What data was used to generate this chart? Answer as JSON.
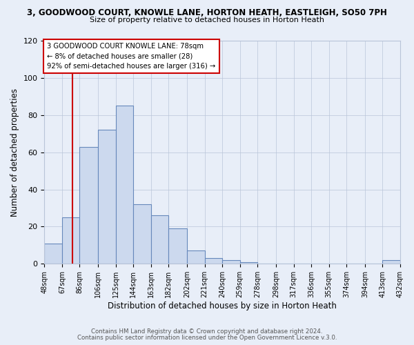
{
  "title_main": "3, GOODWOOD COURT, KNOWLE LANE, HORTON HEATH, EASTLEIGH, SO50 7PH",
  "title_sub": "Size of property relative to detached houses in Horton Heath",
  "xlabel": "Distribution of detached houses by size in Horton Heath",
  "ylabel": "Number of detached properties",
  "bin_edges": [
    48,
    67,
    86,
    106,
    125,
    144,
    163,
    182,
    202,
    221,
    240,
    259,
    278,
    298,
    317,
    336,
    355,
    374,
    394,
    413,
    432
  ],
  "bin_labels": [
    "48sqm",
    "67sqm",
    "86sqm",
    "106sqm",
    "125sqm",
    "144sqm",
    "163sqm",
    "182sqm",
    "202sqm",
    "221sqm",
    "240sqm",
    "259sqm",
    "278sqm",
    "298sqm",
    "317sqm",
    "336sqm",
    "355sqm",
    "374sqm",
    "394sqm",
    "413sqm",
    "432sqm"
  ],
  "counts": [
    11,
    25,
    63,
    72,
    85,
    32,
    26,
    19,
    7,
    3,
    2,
    1,
    0,
    0,
    0,
    0,
    0,
    0,
    0,
    2
  ],
  "bar_facecolor": "#ccd9ee",
  "bar_edgecolor": "#6688bb",
  "vline_x": 78,
  "vline_color": "#cc0000",
  "annotation_line1": "3 GOODWOOD COURT KNOWLE LANE: 78sqm",
  "annotation_line2": "← 8% of detached houses are smaller (28)",
  "annotation_line3": "92% of semi-detached houses are larger (316) →",
  "annotation_box_color": "#cc0000",
  "annotation_bg": "#ffffff",
  "ylim": [
    0,
    120
  ],
  "yticks": [
    0,
    20,
    40,
    60,
    80,
    100,
    120
  ],
  "footer1": "Contains HM Land Registry data © Crown copyright and database right 2024.",
  "footer2": "Contains public sector information licensed under the Open Government Licence v.3.0.",
  "bg_color": "#e8eef8"
}
